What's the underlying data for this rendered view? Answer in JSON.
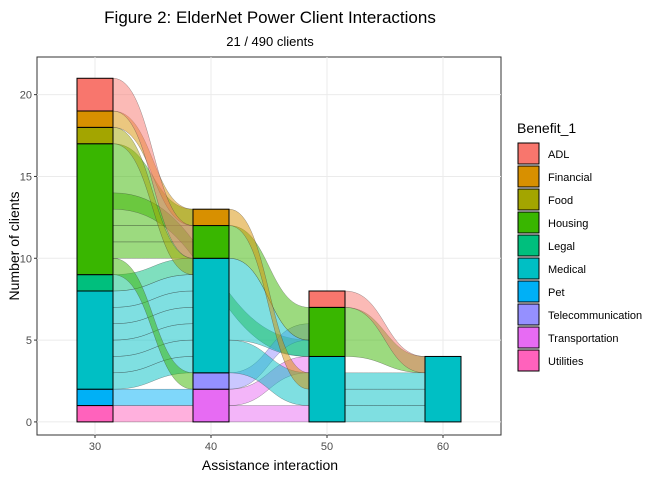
{
  "chart_data": {
    "type": "alluvial",
    "title": "Figure 2: ElderNet Power Client Interactions",
    "subtitle": "21 / 490 clients",
    "xlabel": "Assistance interaction",
    "ylabel": "Number of clients",
    "x_ticks": [
      "30",
      "40",
      "50",
      "60"
    ],
    "y_ticks": [
      "0",
      "5",
      "10",
      "15",
      "20"
    ],
    "xlim": [
      25,
      65
    ],
    "ylim": [
      -0.8,
      22.3
    ],
    "grid": true,
    "legend": {
      "title": "Benefit_1",
      "placement": "right",
      "entries": [
        {
          "label": "ADL",
          "color": "#F8766D"
        },
        {
          "label": "Financial",
          "color": "#D89000"
        },
        {
          "label": "Food",
          "color": "#A3A500"
        },
        {
          "label": "Housing",
          "color": "#39B600"
        },
        {
          "label": "Legal",
          "color": "#00BF7D"
        },
        {
          "label": "Medical",
          "color": "#00BFC4"
        },
        {
          "label": "Pet",
          "color": "#00B0F6"
        },
        {
          "label": "Telecommunication",
          "color": "#9590FF"
        },
        {
          "label": "Transportation",
          "color": "#E76BF3"
        },
        {
          "label": "Utilities",
          "color": "#FF62BC"
        }
      ]
    },
    "stacks": [
      {
        "x": 30,
        "segments": [
          {
            "category": "Utilities",
            "count": 1
          },
          {
            "category": "Pet",
            "count": 1
          },
          {
            "category": "Medical",
            "count": 6
          },
          {
            "category": "Legal",
            "count": 1
          },
          {
            "category": "Housing",
            "count": 8
          },
          {
            "category": "Food",
            "count": 1
          },
          {
            "category": "Financial",
            "count": 1
          },
          {
            "category": "ADL",
            "count": 2
          }
        ]
      },
      {
        "x": 40,
        "segments": [
          {
            "category": "Transportation",
            "count": 2
          },
          {
            "category": "Telecommunication",
            "count": 1
          },
          {
            "category": "Medical",
            "count": 7
          },
          {
            "category": "Housing",
            "count": 2
          },
          {
            "category": "Financial",
            "count": 1
          }
        ]
      },
      {
        "x": 50,
        "segments": [
          {
            "category": "Medical",
            "count": 4
          },
          {
            "category": "Housing",
            "count": 3
          },
          {
            "category": "ADL",
            "count": 1
          }
        ]
      },
      {
        "x": 60,
        "segments": [
          {
            "category": "Medical",
            "count": 4
          }
        ]
      }
    ],
    "flows": [
      {
        "category": "Utilities",
        "from": [
          30,
          0,
          1
        ],
        "to": [
          40,
          0,
          1
        ]
      },
      {
        "category": "Pet",
        "from": [
          30,
          1,
          2
        ],
        "to": [
          40,
          1,
          2
        ]
      },
      {
        "category": "Medical",
        "from": [
          30,
          2,
          3
        ],
        "to": [
          40,
          3,
          4
        ]
      },
      {
        "category": "Medical",
        "from": [
          30,
          3,
          4
        ],
        "to": [
          40,
          4,
          5
        ]
      },
      {
        "category": "Medical",
        "from": [
          30,
          4,
          5
        ],
        "to": [
          40,
          5,
          6
        ]
      },
      {
        "category": "Medical",
        "from": [
          30,
          5,
          6
        ],
        "to": [
          40,
          6,
          7
        ]
      },
      {
        "category": "Medical",
        "from": [
          30,
          6,
          7
        ],
        "to": [
          40,
          7,
          8
        ]
      },
      {
        "category": "Medical",
        "from": [
          30,
          7,
          8
        ],
        "to": [
          40,
          8,
          9
        ]
      },
      {
        "category": "Legal",
        "from": [
          30,
          8,
          9
        ],
        "to": [
          40,
          9,
          10
        ]
      },
      {
        "category": "Housing",
        "from": [
          30,
          9,
          10
        ],
        "to": [
          40,
          2,
          3
        ]
      },
      {
        "category": "Housing",
        "from": [
          30,
          10,
          11
        ],
        "to": [
          40,
          10,
          11
        ]
      },
      {
        "category": "Housing",
        "from": [
          30,
          11,
          12
        ],
        "to": [
          40,
          11,
          12
        ]
      },
      {
        "category": "Housing",
        "from": [
          30,
          12,
          17
        ],
        "to": [
          40,
          12,
          13
        ]
      },
      {
        "category": "Housing",
        "from": [
          30,
          13,
          14
        ],
        "to": [
          50,
          4,
          5
        ]
      },
      {
        "category": "Food",
        "from": [
          30,
          17,
          18
        ],
        "to": [
          40,
          9,
          10
        ]
      },
      {
        "category": "Financial",
        "from": [
          30,
          18,
          19
        ],
        "to": [
          40,
          12,
          13
        ]
      },
      {
        "category": "ADL",
        "from": [
          30,
          19,
          21
        ],
        "to": [
          40,
          10,
          12
        ]
      },
      {
        "category": "Transportation",
        "from": [
          40,
          0,
          1
        ],
        "to": [
          50,
          0,
          1
        ]
      },
      {
        "category": "Transportation",
        "from": [
          40,
          1,
          2
        ],
        "to": [
          50,
          3,
          4
        ]
      },
      {
        "category": "Telecommunication",
        "from": [
          40,
          2,
          3
        ],
        "to": [
          50,
          5,
          6
        ]
      },
      {
        "category": "Medical",
        "from": [
          40,
          3,
          5
        ],
        "to": [
          50,
          1,
          3
        ]
      },
      {
        "category": "Medical",
        "from": [
          40,
          5,
          10
        ],
        "to": [
          50,
          4,
          5
        ]
      },
      {
        "category": "Housing",
        "from": [
          40,
          10,
          12
        ],
        "to": [
          50,
          5,
          7
        ]
      },
      {
        "category": "Financial",
        "from": [
          40,
          12,
          13
        ],
        "to": [
          50,
          2,
          3
        ]
      },
      {
        "category": "Medical",
        "from": [
          50,
          0,
          1
        ],
        "to": [
          60,
          0,
          1
        ]
      },
      {
        "category": "Medical",
        "from": [
          50,
          1,
          2
        ],
        "to": [
          60,
          1,
          2
        ]
      },
      {
        "category": "Medical",
        "from": [
          50,
          2,
          3
        ],
        "to": [
          60,
          2,
          3
        ]
      },
      {
        "category": "Housing",
        "from": [
          50,
          4,
          7
        ],
        "to": [
          60,
          3,
          4
        ]
      },
      {
        "category": "ADL",
        "from": [
          50,
          7,
          8
        ],
        "to": [
          60,
          3,
          4
        ]
      }
    ]
  }
}
